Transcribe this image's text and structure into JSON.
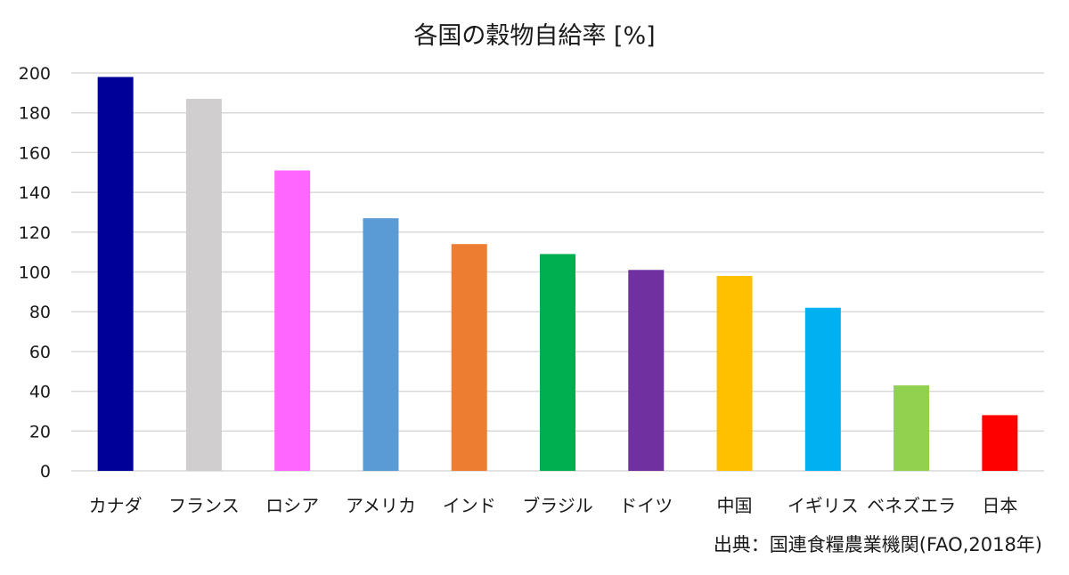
{
  "chart_data": {
    "type": "bar",
    "title": "各国の穀物自給率 [%]",
    "source": "出典：国連食糧農業機関(FAO,2018年)",
    "categories": [
      "カナダ",
      "フランス",
      "ロシア",
      "アメリカ",
      "インド",
      "ブラジル",
      "ドイツ",
      "中国",
      "イギリス",
      "ベネズエラ",
      "日本"
    ],
    "values": [
      198,
      187,
      151,
      127,
      114,
      109,
      101,
      98,
      82,
      43,
      28
    ],
    "colors": [
      "#000099",
      "#d0cece",
      "#ff66ff",
      "#5b9bd5",
      "#ed7d31",
      "#00b050",
      "#7030a0",
      "#ffc000",
      "#00b0f0",
      "#92d050",
      "#ff0000"
    ],
    "ylim": [
      0,
      200
    ],
    "yticks": [
      0,
      20,
      40,
      60,
      80,
      100,
      120,
      140,
      160,
      180,
      200
    ],
    "grid": true,
    "legend": "none"
  }
}
